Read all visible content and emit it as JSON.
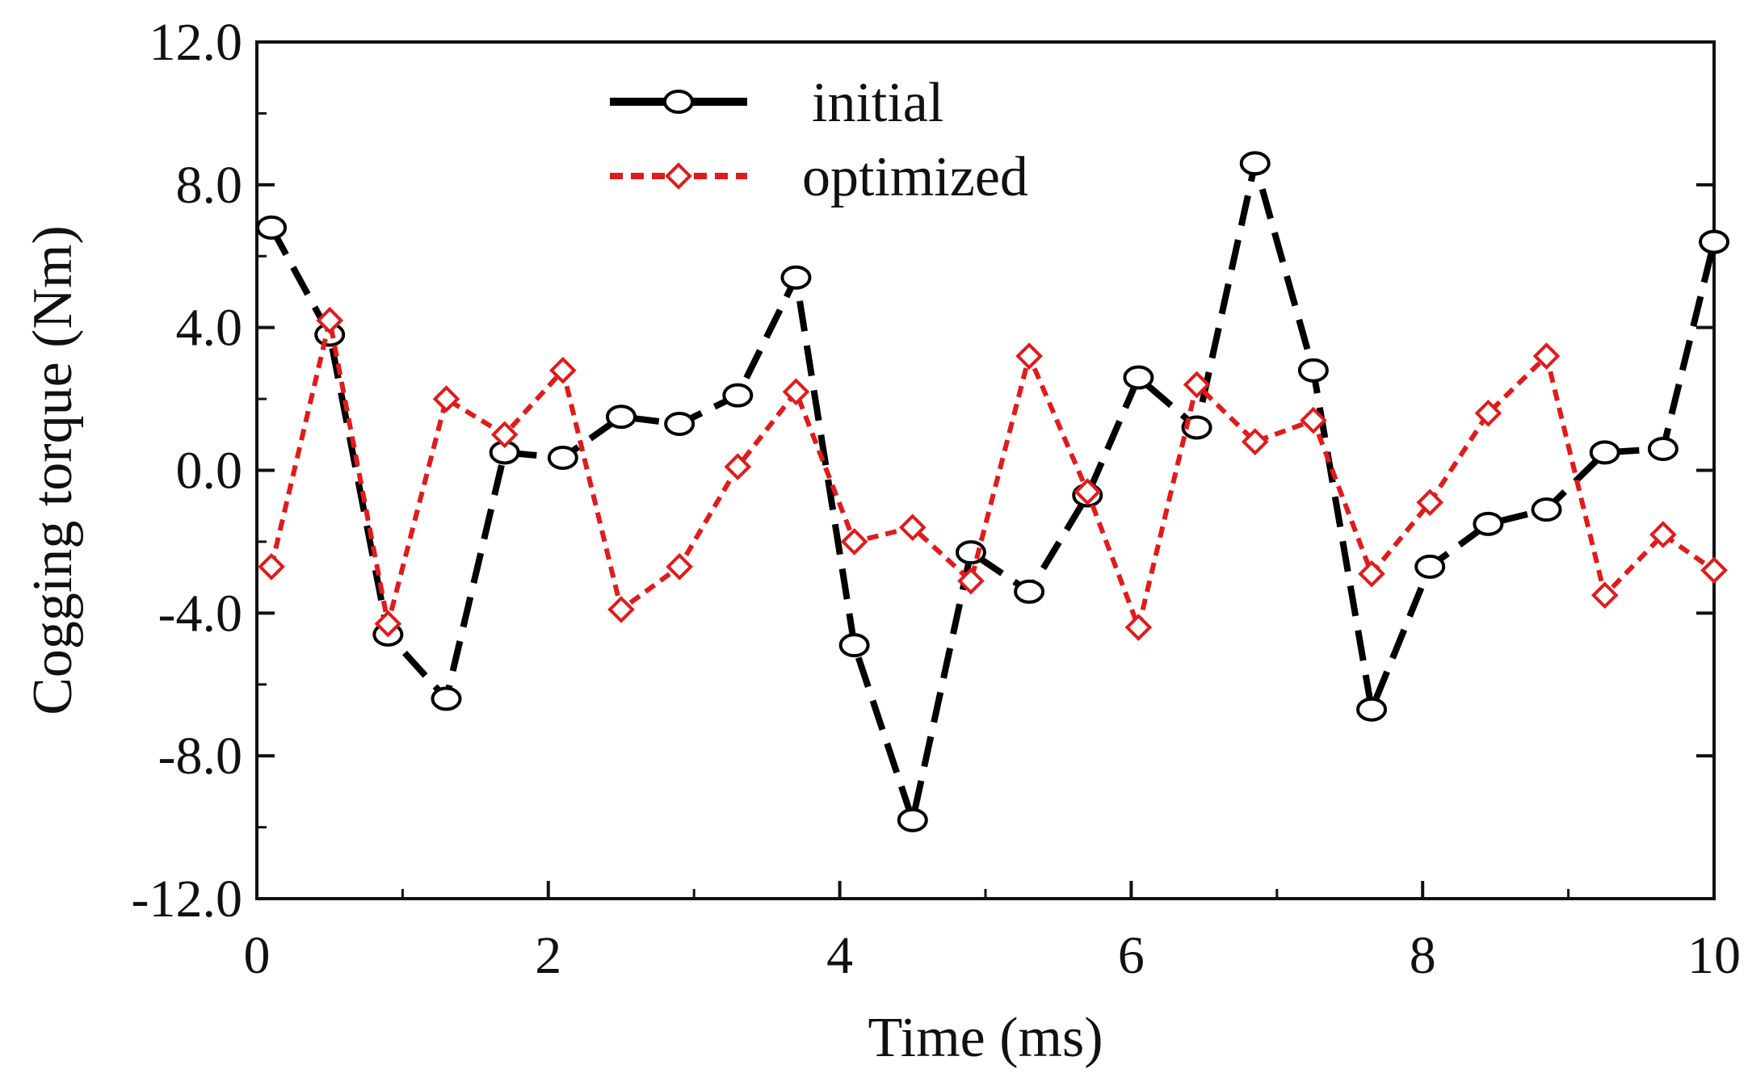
{
  "chart_data": {
    "type": "line",
    "title": "",
    "xlabel": "Time (ms)",
    "ylabel": "Cogging torque (Nm)",
    "xlim": [
      0,
      10
    ],
    "ylim": [
      -12,
      12
    ],
    "x_ticks": [
      0,
      2,
      4,
      6,
      8,
      10
    ],
    "x_tick_labels": [
      "0",
      "2",
      "4",
      "6",
      "8",
      "10"
    ],
    "y_ticks": [
      -12,
      -8,
      -4,
      0,
      4,
      8,
      12
    ],
    "y_tick_labels": [
      "-12.0",
      "-8.0",
      "-4.0",
      "0.0",
      "4.0",
      "8.0",
      "12.0"
    ],
    "grid": false,
    "legend_position": "top-center",
    "series": [
      {
        "name": "initial",
        "color": "#000000",
        "marker": "circle",
        "line_style": "long-dash",
        "x": [
          0.1,
          0.5,
          0.9,
          1.3,
          1.7,
          2.1,
          2.5,
          2.9,
          3.3,
          3.7,
          4.1,
          4.5,
          4.9,
          5.3,
          5.7,
          6.05,
          6.45,
          6.85,
          7.25,
          7.65,
          8.05,
          8.45,
          8.85,
          9.25,
          9.65,
          10.0
        ],
        "values": [
          6.8,
          3.8,
          -4.6,
          -6.4,
          0.5,
          0.35,
          1.5,
          1.3,
          2.1,
          5.4,
          -4.9,
          -9.8,
          -2.3,
          -3.4,
          -0.7,
          2.6,
          1.2,
          8.6,
          2.8,
          -6.7,
          -2.7,
          -1.5,
          -1.1,
          0.5,
          0.6,
          6.4
        ]
      },
      {
        "name": "optimized",
        "color": "#e01b1b",
        "marker": "diamond",
        "line_style": "short-dash",
        "x": [
          0.1,
          0.5,
          0.9,
          1.3,
          1.7,
          2.1,
          2.5,
          2.9,
          3.3,
          3.7,
          4.1,
          4.5,
          4.9,
          5.3,
          5.7,
          6.05,
          6.45,
          6.85,
          7.25,
          7.65,
          8.05,
          8.45,
          8.85,
          9.25,
          9.65,
          10.0
        ],
        "values": [
          -2.7,
          4.2,
          -4.3,
          2.0,
          1.0,
          2.8,
          -3.9,
          -2.7,
          0.1,
          2.2,
          -2.0,
          -1.6,
          -3.1,
          3.2,
          -0.6,
          -4.4,
          2.4,
          0.8,
          1.4,
          -2.9,
          -0.9,
          1.6,
          3.2,
          -3.5,
          -1.8,
          -2.8
        ]
      }
    ]
  }
}
